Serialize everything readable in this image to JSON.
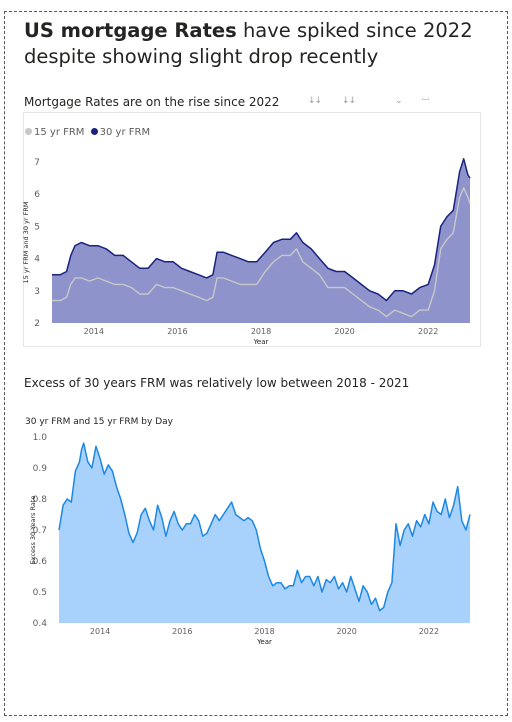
{
  "headline": {
    "bold": "US mortgage Rates",
    "rest": "have spiked since 2022 despite showing slight drop recently"
  },
  "chart1_subtitle": "Mortgage Rates are on the rise since 2022",
  "chart2_subtitle": "Excess of 30 years FRM was relatively low between 2018 - 2021",
  "toolbar": {
    "icons": [
      "drill-down-icon",
      "expand-all-icon",
      "pin-icon",
      "focus-icon"
    ],
    "glyphs": [
      "↓↓",
      "↓↓",
      "⌄",
      "⌴"
    ]
  },
  "colors": {
    "frm30": "#1a237e",
    "frm15": "#c8c8c8",
    "area1": "#8f93cc",
    "area2": "#a8d2fb",
    "line2": "#1e88e5"
  },
  "chart_data": [
    {
      "type": "area",
      "legend": {
        "position": "top-left",
        "entries": [
          "15 yr FRM",
          "30 yr FRM"
        ]
      },
      "xlabel": "Year",
      "ylabel": "15 yr FRM and 30 yr FRM",
      "xlim": [
        2013.0,
        2023.0
      ],
      "ylim": [
        2,
        7
      ],
      "yticks": [
        "2",
        "3",
        "4",
        "5",
        "6",
        "7"
      ],
      "xticks": [
        "2014",
        "2016",
        "2018",
        "2020",
        "2022"
      ],
      "series": [
        {
          "name": "30 yr FRM",
          "x": [
            2013.0,
            2013.2,
            2013.35,
            2013.45,
            2013.55,
            2013.7,
            2013.9,
            2014.1,
            2014.3,
            2014.5,
            2014.7,
            2014.9,
            2015.1,
            2015.3,
            2015.5,
            2015.7,
            2015.9,
            2016.1,
            2016.3,
            2016.5,
            2016.7,
            2016.85,
            2016.95,
            2017.1,
            2017.3,
            2017.5,
            2017.7,
            2017.9,
            2018.1,
            2018.3,
            2018.5,
            2018.7,
            2018.85,
            2019.0,
            2019.2,
            2019.4,
            2019.6,
            2019.8,
            2020.0,
            2020.2,
            2020.4,
            2020.6,
            2020.8,
            2021.0,
            2021.2,
            2021.4,
            2021.6,
            2021.8,
            2022.0,
            2022.15,
            2022.3,
            2022.45,
            2022.6,
            2022.75,
            2022.85,
            2022.95,
            2023.0
          ],
          "values": [
            3.5,
            3.5,
            3.6,
            4.1,
            4.4,
            4.5,
            4.4,
            4.4,
            4.3,
            4.1,
            4.1,
            3.9,
            3.7,
            3.7,
            4.0,
            3.9,
            3.9,
            3.7,
            3.6,
            3.5,
            3.4,
            3.5,
            4.2,
            4.2,
            4.1,
            4.0,
            3.9,
            3.9,
            4.2,
            4.5,
            4.6,
            4.6,
            4.8,
            4.5,
            4.3,
            4.0,
            3.7,
            3.6,
            3.6,
            3.4,
            3.2,
            3.0,
            2.9,
            2.7,
            3.0,
            3.0,
            2.9,
            3.1,
            3.2,
            3.8,
            5.0,
            5.3,
            5.5,
            6.7,
            7.1,
            6.6,
            6.5
          ]
        },
        {
          "name": "15 yr FRM",
          "x": [
            2013.0,
            2013.2,
            2013.35,
            2013.45,
            2013.55,
            2013.7,
            2013.9,
            2014.1,
            2014.3,
            2014.5,
            2014.7,
            2014.9,
            2015.1,
            2015.3,
            2015.5,
            2015.7,
            2015.9,
            2016.1,
            2016.3,
            2016.5,
            2016.7,
            2016.85,
            2016.95,
            2017.1,
            2017.3,
            2017.5,
            2017.7,
            2017.9,
            2018.1,
            2018.3,
            2018.5,
            2018.7,
            2018.85,
            2019.0,
            2019.2,
            2019.4,
            2019.6,
            2019.8,
            2020.0,
            2020.2,
            2020.4,
            2020.6,
            2020.8,
            2021.0,
            2021.2,
            2021.4,
            2021.6,
            2021.8,
            2022.0,
            2022.15,
            2022.3,
            2022.45,
            2022.6,
            2022.75,
            2022.85,
            2022.95,
            2023.0
          ],
          "values": [
            2.7,
            2.7,
            2.8,
            3.2,
            3.4,
            3.4,
            3.3,
            3.4,
            3.3,
            3.2,
            3.2,
            3.1,
            2.9,
            2.9,
            3.2,
            3.1,
            3.1,
            3.0,
            2.9,
            2.8,
            2.7,
            2.8,
            3.4,
            3.4,
            3.3,
            3.2,
            3.2,
            3.2,
            3.6,
            3.9,
            4.1,
            4.1,
            4.3,
            3.9,
            3.7,
            3.5,
            3.1,
            3.1,
            3.1,
            2.9,
            2.7,
            2.5,
            2.4,
            2.2,
            2.4,
            2.3,
            2.2,
            2.4,
            2.4,
            3.0,
            4.3,
            4.6,
            4.8,
            5.9,
            6.2,
            5.9,
            5.7
          ]
        }
      ]
    },
    {
      "type": "area",
      "title": "30 yr FRM and 15 yr FRM by Day",
      "xlabel": "Year",
      "ylabel": "Excess 30 Years Rate",
      "xlim": [
        2013.0,
        2023.0
      ],
      "ylim": [
        0.4,
        1.0
      ],
      "yticks": [
        "0.4",
        "0.5",
        "0.6",
        "0.7",
        "0.8",
        "0.9",
        "1.0"
      ],
      "xticks": [
        "2014",
        "2016",
        "2018",
        "2020",
        "2022"
      ],
      "series": [
        {
          "name": "Excess 30 Years Rate",
          "x": [
            2013.0,
            2013.1,
            2013.2,
            2013.3,
            2013.4,
            2013.5,
            2013.55,
            2013.6,
            2013.65,
            2013.7,
            2013.8,
            2013.9,
            2014.0,
            2014.1,
            2014.2,
            2014.3,
            2014.4,
            2014.5,
            2014.6,
            2014.7,
            2014.8,
            2014.9,
            2015.0,
            2015.1,
            2015.2,
            2015.3,
            2015.4,
            2015.5,
            2015.6,
            2015.7,
            2015.8,
            2015.9,
            2016.0,
            2016.1,
            2016.2,
            2016.3,
            2016.4,
            2016.5,
            2016.6,
            2016.7,
            2016.8,
            2016.9,
            2017.0,
            2017.1,
            2017.2,
            2017.3,
            2017.4,
            2017.5,
            2017.6,
            2017.7,
            2017.8,
            2017.9,
            2018.0,
            2018.1,
            2018.2,
            2018.3,
            2018.4,
            2018.5,
            2018.6,
            2018.7,
            2018.8,
            2018.9,
            2019.0,
            2019.1,
            2019.2,
            2019.3,
            2019.4,
            2019.5,
            2019.6,
            2019.7,
            2019.8,
            2019.9,
            2020.0,
            2020.1,
            2020.2,
            2020.3,
            2020.4,
            2020.5,
            2020.6,
            2020.7,
            2020.8,
            2020.9,
            2021.0,
            2021.1,
            2021.2,
            2021.3,
            2021.4,
            2021.5,
            2021.6,
            2021.7,
            2021.8,
            2021.9,
            2022.0,
            2022.1,
            2022.2,
            2022.3,
            2022.4,
            2022.5,
            2022.6,
            2022.7,
            2022.8,
            2022.9,
            2023.0
          ],
          "values": [
            0.7,
            0.78,
            0.8,
            0.79,
            0.89,
            0.92,
            0.96,
            0.98,
            0.95,
            0.92,
            0.9,
            0.97,
            0.93,
            0.88,
            0.91,
            0.89,
            0.84,
            0.8,
            0.75,
            0.69,
            0.66,
            0.69,
            0.75,
            0.77,
            0.73,
            0.7,
            0.78,
            0.74,
            0.68,
            0.73,
            0.76,
            0.72,
            0.7,
            0.72,
            0.72,
            0.75,
            0.73,
            0.68,
            0.69,
            0.72,
            0.75,
            0.73,
            0.75,
            0.77,
            0.79,
            0.75,
            0.74,
            0.73,
            0.74,
            0.73,
            0.7,
            0.64,
            0.6,
            0.55,
            0.52,
            0.53,
            0.53,
            0.51,
            0.52,
            0.52,
            0.57,
            0.53,
            0.55,
            0.55,
            0.52,
            0.55,
            0.5,
            0.54,
            0.53,
            0.55,
            0.51,
            0.53,
            0.5,
            0.55,
            0.51,
            0.47,
            0.52,
            0.5,
            0.46,
            0.48,
            0.44,
            0.45,
            0.5,
            0.53,
            0.72,
            0.65,
            0.7,
            0.72,
            0.68,
            0.73,
            0.71,
            0.75,
            0.72,
            0.79,
            0.76,
            0.75,
            0.8,
            0.74,
            0.78,
            0.84,
            0.73,
            0.7,
            0.75
          ]
        }
      ]
    }
  ]
}
